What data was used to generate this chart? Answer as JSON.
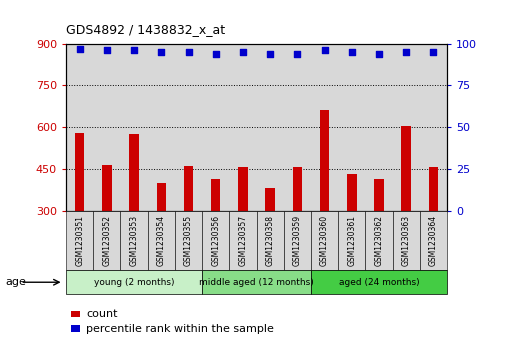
{
  "title": "GDS4892 / 1438832_x_at",
  "samples": [
    "GSM1230351",
    "GSM1230352",
    "GSM1230353",
    "GSM1230354",
    "GSM1230355",
    "GSM1230356",
    "GSM1230357",
    "GSM1230358",
    "GSM1230359",
    "GSM1230360",
    "GSM1230361",
    "GSM1230362",
    "GSM1230363",
    "GSM1230364"
  ],
  "counts": [
    580,
    465,
    575,
    400,
    460,
    415,
    455,
    380,
    455,
    660,
    430,
    415,
    605,
    455
  ],
  "percentiles": [
    97,
    96,
    96,
    95,
    95,
    94,
    95,
    94,
    94,
    96,
    95,
    94,
    95,
    95
  ],
  "bar_color": "#cc0000",
  "dot_color": "#0000cc",
  "ylim_left": [
    300,
    900
  ],
  "ylim_right": [
    0,
    100
  ],
  "yticks_left": [
    300,
    450,
    600,
    750,
    900
  ],
  "yticks_right": [
    0,
    25,
    50,
    75,
    100
  ],
  "groups": [
    {
      "label": "young (2 months)",
      "start": 0,
      "end": 5,
      "color": "#c8f0c8"
    },
    {
      "label": "middle aged (12 months)",
      "start": 5,
      "end": 9,
      "color": "#88dd88"
    },
    {
      "label": "aged (24 months)",
      "start": 9,
      "end": 14,
      "color": "#44cc44"
    }
  ],
  "age_label": "age",
  "legend_count_label": "count",
  "legend_percentile_label": "percentile rank within the sample",
  "grid_color": "#000000",
  "background_color": "#ffffff",
  "plot_bg_color": "#d8d8d8",
  "tick_box_color": "#d8d8d8"
}
